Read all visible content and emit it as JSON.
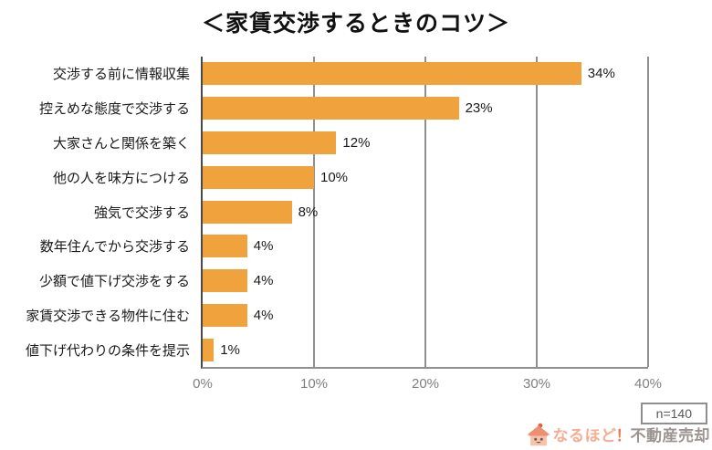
{
  "title": "＜家賃交渉するときのコツ＞",
  "chart_data": {
    "type": "bar",
    "orientation": "horizontal",
    "title": "＜家賃交渉するときのコツ＞",
    "categories": [
      "交渉する前に情報収集",
      "控えめな態度で交渉する",
      "大家さんと関係を築く",
      "他の人を味方につける",
      "強気で交渉する",
      "数年住んでから交渉する",
      "少額で値下げ交渉をする",
      "家賃交渉できる物件に住む",
      "値下げ代わりの条件を提示"
    ],
    "values": [
      34,
      23,
      12,
      10,
      8,
      4,
      4,
      4,
      1
    ],
    "value_labels": [
      "34%",
      "23%",
      "12%",
      "10%",
      "8%",
      "4%",
      "4%",
      "4%",
      "1%"
    ],
    "xlim": [
      0,
      40
    ],
    "x_ticks": [
      "0%",
      "10%",
      "20%",
      "30%",
      "40%"
    ],
    "grid": true,
    "legend": "none",
    "bar_color": "#F0A33C",
    "axis_color": "#4a4a4a",
    "grid_color": "#8f8f8f",
    "tick_label_color": "#7f7f7f"
  },
  "footer": {
    "sample_size": "n=140",
    "logo": {
      "icon": "house-icon",
      "brand_main": "なるほど",
      "brand_exclaim": "！",
      "brand_sub": "不動産売却",
      "color_main": "#F5AE94",
      "color_exclaim": "#EE7B51",
      "color_sub": "#9C9490"
    }
  }
}
